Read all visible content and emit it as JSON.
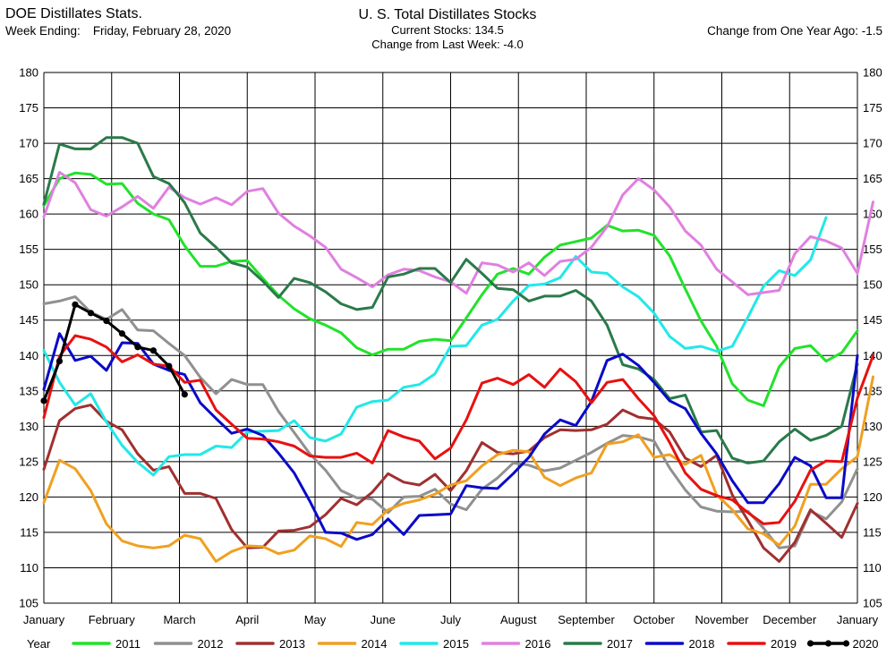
{
  "header": {
    "app_title": "DOE Distillates Stats.",
    "week_label": "Week Ending:",
    "week_value": "Friday, February 28, 2020",
    "chart_title": "U. S. Total Distillates Stocks",
    "current_stocks": "Current Stocks: 134.5",
    "change_week": "Change from Last Week: -4.0",
    "change_year": "Change from One Year Ago: -1.5"
  },
  "chart_data": {
    "type": "line",
    "title": "U. S. Total Distillates Stocks",
    "ylim": [
      105,
      180
    ],
    "yticks": [
      105,
      110,
      115,
      120,
      125,
      130,
      135,
      140,
      145,
      150,
      155,
      160,
      165,
      170,
      175,
      180
    ],
    "xlim": [
      1,
      53
    ],
    "xtick_labels": [
      "January",
      "February",
      "March",
      "April",
      "May",
      "June",
      "July",
      "August",
      "September",
      "October",
      "November",
      "December",
      "January"
    ],
    "grid": true,
    "legend_title": "Year",
    "legend_position": "bottom",
    "series": [
      {
        "name": "2011",
        "color": "#22e22a",
        "markers": false,
        "values": [
          161.2,
          165,
          165.8,
          165.6,
          164.2,
          164.3,
          161.5,
          160,
          159.2,
          155.5,
          152.6,
          152.6,
          153.3,
          153.4,
          150.9,
          148.5,
          146.6,
          145.2,
          144.3,
          143.2,
          141.1,
          140.1,
          140.9,
          140.9,
          142,
          142.3,
          142.1,
          145.3,
          148.6,
          151.5,
          152.3,
          151.5,
          153.9,
          155.6,
          156.1,
          156.6,
          158.4,
          157.6,
          157.7,
          157,
          154.1,
          149.4,
          144.9,
          141.3,
          136,
          133.7,
          132.9,
          138.4,
          141,
          141.4,
          139.2,
          140.4,
          143.5
        ]
      },
      {
        "name": "2012",
        "color": "#909090",
        "markers": false,
        "values": [
          147.3,
          147.7,
          148.3,
          146.1,
          145.1,
          146.5,
          143.6,
          143.5,
          141.7,
          140,
          136.9,
          134.6,
          136.6,
          135.9,
          135.9,
          132.1,
          129.1,
          126.1,
          123.8,
          120.9,
          119.9,
          119.7,
          117.8,
          120,
          120.1,
          121.1,
          119,
          118.2,
          121.1,
          122.7,
          124.8,
          124.5,
          123.7,
          124.1,
          125.2,
          126.3,
          127.6,
          128.7,
          128.5,
          127.9,
          124.1,
          121,
          118.6,
          118,
          117.9,
          118,
          115.6,
          112.8,
          113.1,
          118,
          116.9,
          119.3,
          124
        ]
      },
      {
        "name": "2013",
        "color": "#a03030",
        "markers": false,
        "values": [
          123.9,
          130.8,
          132.5,
          133,
          130.7,
          129.5,
          126.1,
          123.8,
          124.3,
          120.5,
          120.5,
          119.8,
          115.4,
          112.8,
          112.9,
          115.2,
          115.3,
          115.8,
          117.5,
          119.8,
          118.9,
          120.7,
          123.3,
          122.1,
          121.7,
          123.2,
          120.9,
          123.7,
          127.7,
          126.3,
          126.1,
          126.5,
          128.4,
          129.5,
          129.4,
          129.5,
          130.3,
          132.3,
          131.3,
          131,
          129.2,
          125.5,
          124.3,
          125.9,
          120.3,
          116.7,
          112.8,
          110.9,
          113.6,
          118.2,
          116.3,
          114.3,
          119.1
        ]
      },
      {
        "name": "2014",
        "color": "#f0a020",
        "markers": false,
        "values": [
          119.2,
          125.2,
          124,
          120.9,
          116.2,
          113.8,
          113.1,
          112.8,
          113.1,
          114.6,
          114.1,
          110.9,
          112.3,
          113.1,
          113,
          112,
          112.5,
          114.5,
          114.1,
          113,
          116.4,
          116.1,
          118.2,
          119.1,
          119.6,
          120.4,
          121.7,
          122.3,
          124.4,
          126,
          126.6,
          126.4,
          122.8,
          121.6,
          122.7,
          123.4,
          127.5,
          127.8,
          128.8,
          125.6,
          126,
          124.6,
          125.9,
          120.3,
          118.2,
          115.5,
          114.8,
          113.2,
          115.9,
          121.8,
          121.8,
          124,
          125.7,
          137
        ]
      },
      {
        "name": "2015",
        "color": "#22e8e8",
        "markers": false,
        "values": [
          140.7,
          136.2,
          133,
          134.6,
          130.6,
          127.3,
          124.9,
          123.1,
          125.7,
          126,
          126,
          127.2,
          127,
          129.2,
          129.3,
          129.4,
          130.8,
          128.4,
          127.9,
          128.9,
          132.7,
          133.5,
          133.7,
          135.5,
          135.9,
          137.4,
          141.3,
          141.4,
          144.3,
          145.1,
          147.7,
          149.9,
          150.1,
          151,
          154,
          151.8,
          151.6,
          149.7,
          148.3,
          146,
          142.7,
          141,
          141.3,
          140.6,
          141.3,
          145.4,
          149.8,
          152,
          151.3,
          153.5,
          159.5
        ]
      },
      {
        "name": "2016",
        "color": "#e080e0",
        "markers": false,
        "values": [
          159.6,
          165.9,
          164.4,
          160.6,
          159.7,
          161,
          162.5,
          160.8,
          163.8,
          162.3,
          161.4,
          162.3,
          161.3,
          163.2,
          163.6,
          160.1,
          158.3,
          156.9,
          155.3,
          152.2,
          151,
          149.7,
          151.4,
          152.2,
          152,
          151.1,
          150.4,
          148.8,
          153.1,
          152.8,
          151.8,
          153.1,
          151.3,
          153.3,
          153.6,
          155.3,
          158.2,
          162.7,
          165,
          163.4,
          161,
          157.6,
          155.6,
          152.2,
          150.4,
          148.6,
          148.9,
          149.2,
          154.4,
          156.8,
          156.2,
          155.2,
          151.6,
          161.7
        ]
      },
      {
        "name": "2017",
        "color": "#2a7a4a",
        "markers": false,
        "values": [
          161.4,
          169.9,
          169.2,
          169.2,
          170.8,
          170.8,
          170,
          165.3,
          164.3,
          161.6,
          157.3,
          155.3,
          153.1,
          152.5,
          150.5,
          148.2,
          150.9,
          150.3,
          149,
          147.3,
          146.5,
          146.8,
          151.1,
          151.5,
          152.3,
          152.3,
          150.3,
          153.6,
          151.6,
          149.5,
          149.3,
          147.7,
          148.4,
          148.4,
          149.2,
          147.7,
          144.3,
          138.7,
          138.1,
          136.6,
          133.9,
          134.4,
          129.2,
          129.4,
          125.5,
          124.8,
          125.1,
          127.8,
          129.6,
          128,
          128.7,
          130,
          138.8
        ]
      },
      {
        "name": "2018",
        "color": "#0a0ac8",
        "markers": false,
        "values": [
          135.2,
          143.1,
          139.3,
          139.9,
          137.9,
          141.8,
          141.7,
          138.8,
          137.9,
          137.3,
          133.3,
          131.1,
          129,
          129.6,
          128.7,
          126.2,
          123.4,
          119.4,
          115,
          114.9,
          114,
          114.7,
          116.9,
          114.7,
          117.4,
          117.5,
          117.6,
          121.6,
          121.3,
          121.2,
          123.3,
          125.6,
          128.9,
          130.9,
          130.1,
          133.5,
          139.3,
          140.2,
          138.6,
          136.2,
          133.6,
          132.5,
          129,
          126.1,
          122.3,
          119.2,
          119.2,
          121.9,
          125.6,
          124.4,
          119.9,
          119.9,
          140
        ]
      },
      {
        "name": "2019",
        "color": "#e81010",
        "markers": false,
        "values": [
          131.2,
          139.9,
          142.8,
          142.3,
          141.2,
          139.1,
          140.1,
          138.8,
          138.5,
          136.2,
          136.5,
          132.3,
          130.3,
          128.3,
          128.2,
          127.8,
          127.2,
          125.8,
          125.6,
          125.6,
          126.2,
          124.8,
          129.4,
          128.5,
          127.9,
          125.4,
          126.9,
          130.9,
          136.1,
          136.8,
          135.9,
          137.3,
          135.5,
          138.1,
          136.3,
          133.3,
          136.2,
          136.6,
          133.9,
          131.5,
          127.7,
          123.4,
          121.1,
          120.2,
          119.6,
          117.8,
          116.2,
          116.4,
          119.4,
          123.8,
          125.1,
          125,
          134,
          140
        ]
      },
      {
        "name": "2020",
        "color": "#000000",
        "markers": true,
        "values": [
          133.6,
          139.2,
          147.2,
          146,
          144.9,
          143.1,
          141.2,
          140.7,
          138.5,
          134.5
        ]
      }
    ]
  }
}
